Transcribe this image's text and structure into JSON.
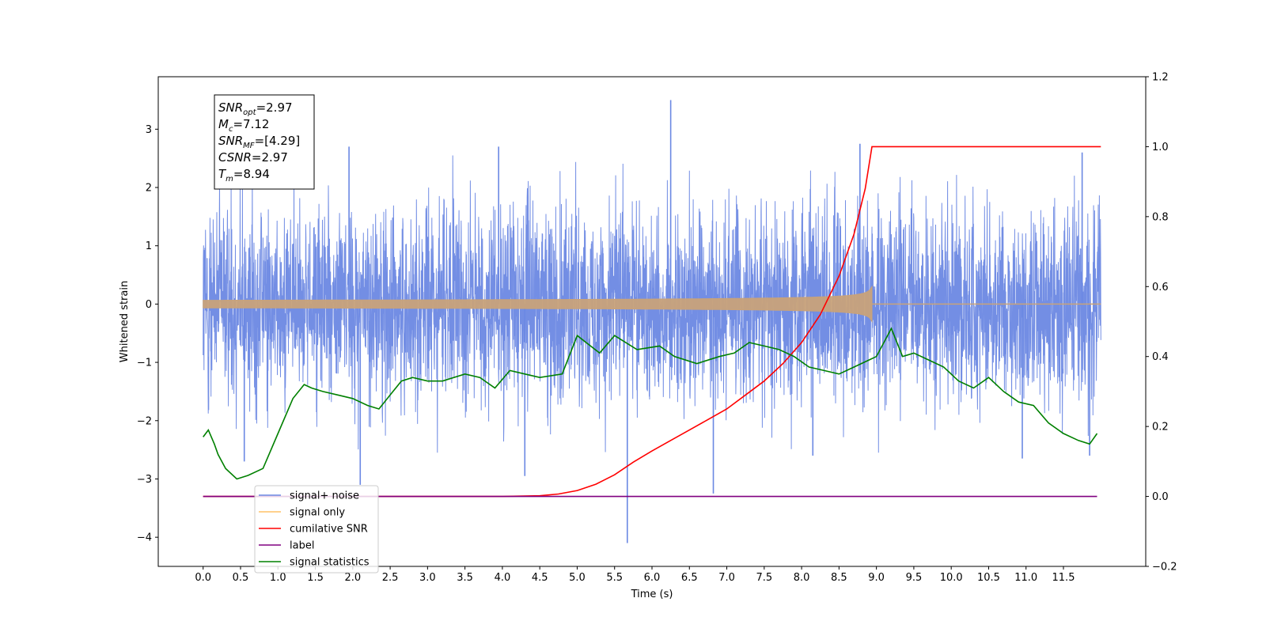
{
  "chart_data": {
    "type": "line",
    "xlabel": "Time (s)",
    "ylabel": "Whitened strain",
    "xlim": [
      -0.6,
      12.6
    ],
    "ylim": [
      -4.5,
      3.9
    ],
    "y2lim": [
      -0.2,
      1.2
    ],
    "x_ticks": [
      0.0,
      0.5,
      1.0,
      1.5,
      2.0,
      2.5,
      3.0,
      3.5,
      4.0,
      4.5,
      5.0,
      5.5,
      6.0,
      6.5,
      7.0,
      7.5,
      8.0,
      8.5,
      9.0,
      9.5,
      10.0,
      10.5,
      11.0,
      11.5
    ],
    "x_tick_labels": [
      "0.0",
      "0.5",
      "1.0",
      "1.5",
      "2.0",
      "2.5",
      "3.0",
      "3.5",
      "4.0",
      "4.5",
      "5.0",
      "5.5",
      "6.0",
      "6.5",
      "7.0",
      "7.5",
      "8.0",
      "8.5",
      "9.0",
      "9.5",
      "10.0",
      "10.5",
      "11.0",
      "11.5"
    ],
    "y_ticks": [
      -4,
      -3,
      -2,
      -1,
      0,
      1,
      2,
      3
    ],
    "y_tick_labels": [
      "−4",
      "−3",
      "−2",
      "−1",
      "0",
      "1",
      "2",
      "3"
    ],
    "y2_ticks": [
      -0.2,
      0.0,
      0.2,
      0.4,
      0.6,
      0.8,
      1.0,
      1.2
    ],
    "y2_tick_labels": [
      "−0.2",
      "0.0",
      "0.2",
      "0.4",
      "0.6",
      "0.8",
      "1.0",
      "1.2"
    ],
    "series": [
      {
        "name": "signal+ noise",
        "color": "#6b88e3",
        "axis": "left",
        "note": "dense whitened noise spanning 0.0–12.0 s, envelope roughly ±1.5 with spikes",
        "spikes": [
          [
            6.25,
            3.5
          ],
          [
            5.67,
            -4.1
          ],
          [
            2.1,
            -3.1
          ],
          [
            4.3,
            -2.95
          ],
          [
            6.82,
            -3.25
          ],
          [
            8.78,
            2.75
          ],
          [
            1.95,
            2.7
          ],
          [
            0.55,
            -2.7
          ],
          [
            3.95,
            2.7
          ],
          [
            8.15,
            -2.6
          ],
          [
            10.95,
            -2.65
          ],
          [
            11.85,
            -2.6
          ],
          [
            11.75,
            2.6
          ]
        ]
      },
      {
        "name": "signal only",
        "color": "#c8a27a",
        "axis": "left",
        "chirp": {
          "start": 0.0,
          "merger": 8.94,
          "end": 12.0,
          "peak_amplitude": 0.3
        }
      },
      {
        "name": "cumilative SNR",
        "color": "#ff0000",
        "axis": "right",
        "x": [
          0.0,
          4.0,
          4.5,
          4.75,
          5.0,
          5.25,
          5.5,
          5.75,
          6.0,
          6.25,
          6.5,
          6.75,
          7.0,
          7.25,
          7.5,
          7.75,
          8.0,
          8.25,
          8.5,
          8.7,
          8.85,
          8.94,
          12.0
        ],
        "values": [
          0.0,
          0.0,
          0.002,
          0.007,
          0.017,
          0.035,
          0.062,
          0.098,
          0.13,
          0.16,
          0.19,
          0.22,
          0.25,
          0.29,
          0.33,
          0.38,
          0.44,
          0.52,
          0.63,
          0.75,
          0.88,
          1.0,
          1.0
        ]
      },
      {
        "name": "label",
        "color": "#800080",
        "axis": "right",
        "x": [
          0.0,
          11.95
        ],
        "values": [
          0.0,
          0.0
        ]
      },
      {
        "name": "signal statistics",
        "color": "#008000",
        "axis": "right",
        "x": [
          0.0,
          0.07,
          0.15,
          0.2,
          0.3,
          0.45,
          0.6,
          0.8,
          1.0,
          1.2,
          1.35,
          1.45,
          1.6,
          1.8,
          2.0,
          2.2,
          2.35,
          2.5,
          2.65,
          2.8,
          3.0,
          3.2,
          3.5,
          3.7,
          3.9,
          4.1,
          4.3,
          4.5,
          4.8,
          5.0,
          5.3,
          5.5,
          5.8,
          6.1,
          6.3,
          6.6,
          6.9,
          7.1,
          7.3,
          7.5,
          7.7,
          7.9,
          8.1,
          8.3,
          8.5,
          8.7,
          8.9,
          9.0,
          9.2,
          9.35,
          9.5,
          9.7,
          9.9,
          10.1,
          10.3,
          10.5,
          10.7,
          10.9,
          11.1,
          11.3,
          11.5,
          11.7,
          11.85,
          11.95
        ],
        "values": [
          0.17,
          0.19,
          0.15,
          0.12,
          0.08,
          0.05,
          0.06,
          0.08,
          0.18,
          0.28,
          0.32,
          0.31,
          0.3,
          0.29,
          0.28,
          0.26,
          0.25,
          0.29,
          0.33,
          0.34,
          0.33,
          0.33,
          0.35,
          0.34,
          0.31,
          0.36,
          0.35,
          0.34,
          0.35,
          0.46,
          0.41,
          0.46,
          0.42,
          0.43,
          0.4,
          0.38,
          0.4,
          0.41,
          0.44,
          0.43,
          0.42,
          0.4,
          0.37,
          0.36,
          0.35,
          0.37,
          0.39,
          0.4,
          0.48,
          0.4,
          0.41,
          0.39,
          0.37,
          0.33,
          0.31,
          0.34,
          0.3,
          0.27,
          0.26,
          0.21,
          0.18,
          0.16,
          0.15,
          0.18
        ]
      }
    ],
    "annotation_box": {
      "lines": [
        {
          "base": "SNR",
          "sub": "opt",
          "value": "=2.97"
        },
        {
          "base": "M",
          "sub": "c",
          "value": "=7.12"
        },
        {
          "base": "SNR",
          "sub": "MF",
          "value": "=[4.29]"
        },
        {
          "base": "CSNR",
          "sub": "",
          "value": "=2.97"
        },
        {
          "base": "T",
          "sub": "m",
          "value": "=8.94"
        }
      ]
    },
    "legend": {
      "placement": "lower-left",
      "entries": [
        "signal+ noise",
        "signal only",
        "cumilative SNR",
        "label",
        "signal statistics"
      ]
    }
  }
}
